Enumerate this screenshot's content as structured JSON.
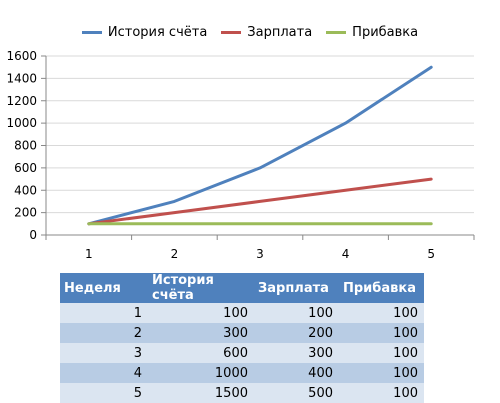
{
  "chart_data": {
    "type": "line",
    "x": [
      1,
      2,
      3,
      4,
      5
    ],
    "ylim": [
      0,
      1600
    ],
    "yticks": [
      0,
      200,
      400,
      600,
      800,
      1000,
      1200,
      1400,
      1600
    ],
    "grid": true,
    "legend_position": "top",
    "series": [
      {
        "name": "История счёта",
        "color": "#4f81bd",
        "values": [
          100,
          300,
          600,
          1000,
          1500
        ]
      },
      {
        "name": "Зарплата",
        "color": "#c0504d",
        "values": [
          100,
          200,
          300,
          400,
          500
        ]
      },
      {
        "name": "Прибавка",
        "color": "#9bbb59",
        "values": [
          100,
          100,
          100,
          100,
          100
        ]
      }
    ]
  },
  "table": {
    "headers": [
      "Неделя",
      "История счёта",
      "Зарплата",
      "Прибавка"
    ],
    "rows": [
      [
        "1",
        "100",
        "100",
        "100"
      ],
      [
        "2",
        "300",
        "200",
        "100"
      ],
      [
        "3",
        "600",
        "300",
        "100"
      ],
      [
        "4",
        "1000",
        "400",
        "100"
      ],
      [
        "5",
        "1500",
        "500",
        "100"
      ]
    ]
  }
}
